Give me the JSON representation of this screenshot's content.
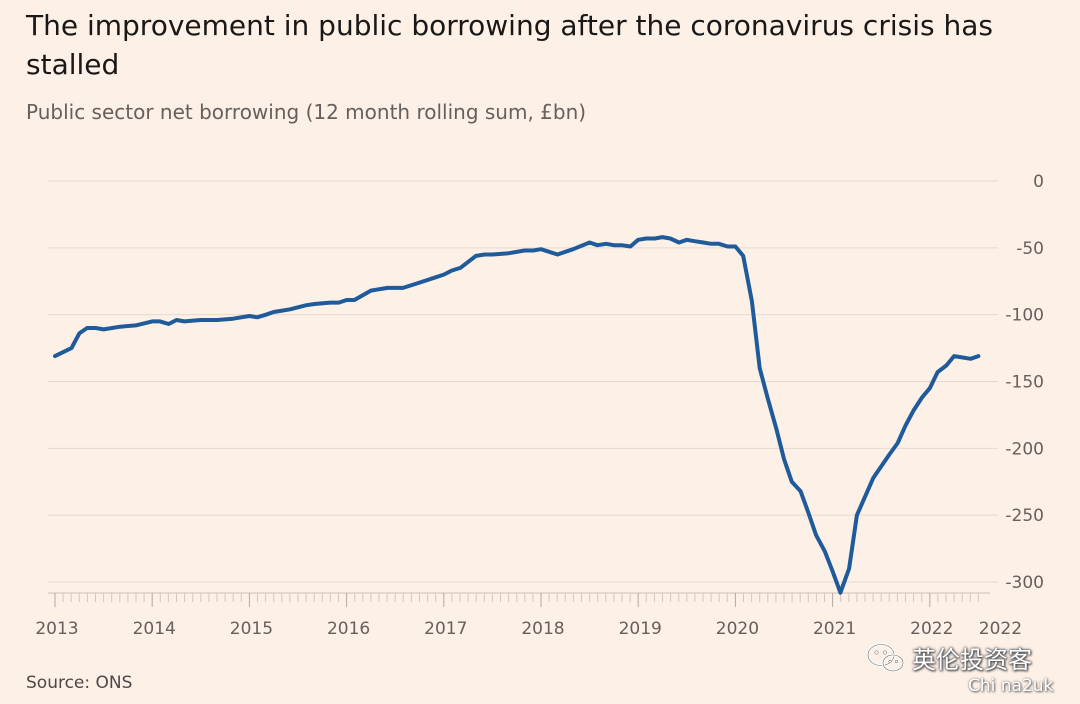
{
  "header": {
    "title": "The improvement in public borrowing after the coronavirus crisis has stalled",
    "subtitle": "Public sector net borrowing (12 month rolling sum, £bn)"
  },
  "footer": {
    "source": "Source: ONS"
  },
  "watermark": {
    "text": "英伦投资客",
    "sub": "Chi na2uk"
  },
  "colors": {
    "background": "#fdf0e7",
    "line": "#1f5a9a",
    "grid": "#e6d9d0"
  },
  "chart_data": {
    "type": "line",
    "title": "The improvement in public borrowing after the coronavirus crisis has stalled",
    "subtitle": "Public sector net borrowing (12 month rolling sum, £bn)",
    "xlabel": "",
    "ylabel": "",
    "y_axis_position": "right",
    "grid": true,
    "ylim": [
      -310,
      0
    ],
    "xlim": [
      2013,
      2022.58
    ],
    "yticks": [
      0,
      -50,
      -100,
      -150,
      -200,
      -250,
      -300
    ],
    "ytick_labels": [
      "0",
      "-50",
      "-100",
      "-150",
      "-200",
      "-250",
      "-300"
    ],
    "xticks": [
      2013,
      2014,
      2015,
      2016,
      2017,
      2018,
      2019,
      2020,
      2021,
      2022,
      2022.5
    ],
    "xtick_labels": [
      "2013",
      "2014",
      "2015",
      "2016",
      "2017",
      "2018",
      "2019",
      "2020",
      "2021",
      "2022",
      "2022"
    ],
    "series": [
      {
        "x": [
          2013.0,
          2013.17,
          2013.25,
          2013.33,
          2013.42,
          2013.5,
          2013.67,
          2013.83,
          2014.0,
          2014.08,
          2014.17,
          2014.25,
          2014.33,
          2014.5,
          2014.67,
          2014.83,
          2015.0,
          2015.08,
          2015.17,
          2015.25,
          2015.42,
          2015.58,
          2015.67,
          2015.83,
          2015.92,
          2016.0,
          2016.08,
          2016.25,
          2016.42,
          2016.58,
          2016.75,
          2016.92,
          2017.0,
          2017.08,
          2017.17,
          2017.33,
          2017.42,
          2017.5,
          2017.67,
          2017.83,
          2017.92,
          2018.0,
          2018.17,
          2018.33,
          2018.5,
          2018.58,
          2018.67,
          2018.75,
          2018.83,
          2018.92,
          2019.0,
          2019.08,
          2019.17,
          2019.25,
          2019.33,
          2019.42,
          2019.5,
          2019.58,
          2019.67,
          2019.75,
          2019.83,
          2019.92,
          2020.0,
          2020.08,
          2020.17,
          2020.25,
          2020.33,
          2020.42,
          2020.5,
          2020.58,
          2020.67,
          2020.75,
          2020.83,
          2020.92,
          2021.0,
          2021.08,
          2021.17,
          2021.25,
          2021.42,
          2021.58,
          2021.67,
          2021.75,
          2021.83,
          2021.92,
          2022.0,
          2022.08,
          2022.17,
          2022.25,
          2022.33,
          2022.42,
          2022.5
        ],
        "values": [
          -131,
          -125,
          -114,
          -110,
          -110,
          -111,
          -109,
          -108,
          -105,
          -105,
          -107,
          -104,
          -105,
          -104,
          -104,
          -103,
          -101,
          -102,
          -100,
          -98,
          -96,
          -93,
          -92,
          -91,
          -91,
          -89,
          -89,
          -82,
          -80,
          -80,
          -76,
          -72,
          -70,
          -67,
          -65,
          -56,
          -55,
          -55,
          -54,
          -52,
          -52,
          -51,
          -55,
          -51,
          -46,
          -48,
          -47,
          -48,
          -48,
          -49,
          -44,
          -43,
          -43,
          -42,
          -43,
          -46,
          -44,
          -45,
          -46,
          -47,
          -47,
          -49,
          -49,
          -56,
          -90,
          -140,
          -162,
          -185,
          -208,
          -225,
          -232,
          -248,
          -265,
          -277,
          -292,
          -308,
          -290,
          -250,
          -222,
          -205,
          -196,
          -183,
          -172,
          -162,
          -155,
          -143,
          -138,
          -131,
          -132,
          -133,
          -131
        ]
      }
    ]
  }
}
